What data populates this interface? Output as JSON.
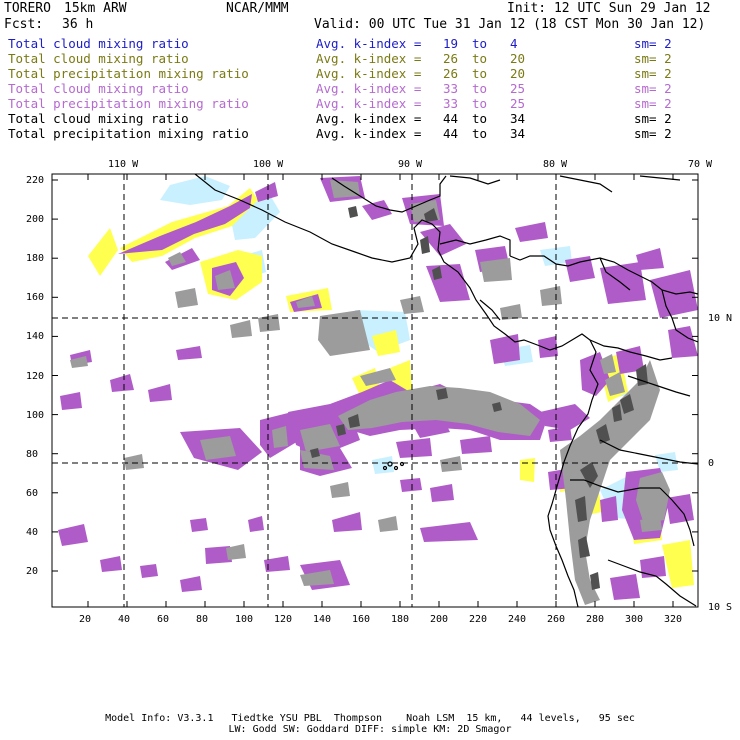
{
  "header": {
    "model": "TORERO",
    "resolution": "15km ARW",
    "org": "NCAR/MMM",
    "init": "Init: 12 UTC Sun 29 Jan 12",
    "fcst_label": "Fcst:",
    "fcst_value": "36 h",
    "valid": "Valid: 00 UTC Tue 31 Jan 12 (18 CST Mon 30 Jan 12)"
  },
  "legend": [
    {
      "field": "Total cloud mixing ratio",
      "kindex": "Avg. k-index =",
      "from": "19",
      "to_word": "to",
      "to": "4",
      "sm": "sm= 2",
      "color": "#1c1cc8"
    },
    {
      "field": "Total cloud mixing ratio",
      "kindex": "Avg. k-index =",
      "from": "26",
      "to_word": "to",
      "to": "20",
      "sm": "sm= 2",
      "color": "#7a7a14"
    },
    {
      "field": "Total precipitation mixing ratio",
      "kindex": "Avg. k-index =",
      "from": "26",
      "to_word": "to",
      "to": "20",
      "sm": "sm= 2",
      "color": "#7a7a14"
    },
    {
      "field": "Total cloud mixing ratio",
      "kindex": "Avg. k-index =",
      "from": "33",
      "to_word": "to",
      "to": "25",
      "sm": "sm= 2",
      "color": "#b56ad0"
    },
    {
      "field": "Total precipitation mixing ratio",
      "kindex": "Avg. k-index =",
      "from": "33",
      "to_word": "to",
      "to": "25",
      "sm": "sm= 2",
      "color": "#b56ad0"
    },
    {
      "field": "Total cloud mixing ratio",
      "kindex": "Avg. k-index =",
      "from": "44",
      "to_word": "to",
      "to": "34",
      "sm": "sm= 2",
      "color": "#000000"
    },
    {
      "field": "Total precipitation mixing ratio",
      "kindex": "Avg. k-index =",
      "from": "44",
      "to_word": "to",
      "to": "34",
      "sm": "sm= 2",
      "color": "#000000"
    }
  ],
  "map": {
    "lon_labels": [
      "110 W",
      "100 W",
      "90 W",
      "80 W",
      "70 W"
    ],
    "lat_labels": [
      "10 N",
      "0",
      "10 S"
    ],
    "y_ticks": [
      "220",
      "200",
      "180",
      "160",
      "140",
      "120",
      "100",
      "80",
      "60",
      "40",
      "20"
    ],
    "x_ticks": [
      "20",
      "40",
      "60",
      "80",
      "100",
      "120",
      "140",
      "160",
      "180",
      "200",
      "220",
      "240",
      "260",
      "280",
      "300",
      "320"
    ],
    "fill_colors": {
      "light_blue": "#c8f0ff",
      "yellow": "#ffff50",
      "purple": "#b05cc8",
      "gray": "#9c9c9c",
      "dark_gray": "#505050"
    }
  },
  "footer": {
    "line1": "Model Info: V3.3.1   Tiedtke YSU PBL  Thompson    Noah LSM  15 km,   44 levels,   95 sec",
    "line2": "LW: Godd SW: Goddard DIFF: simple KM: 2D Smagor"
  }
}
